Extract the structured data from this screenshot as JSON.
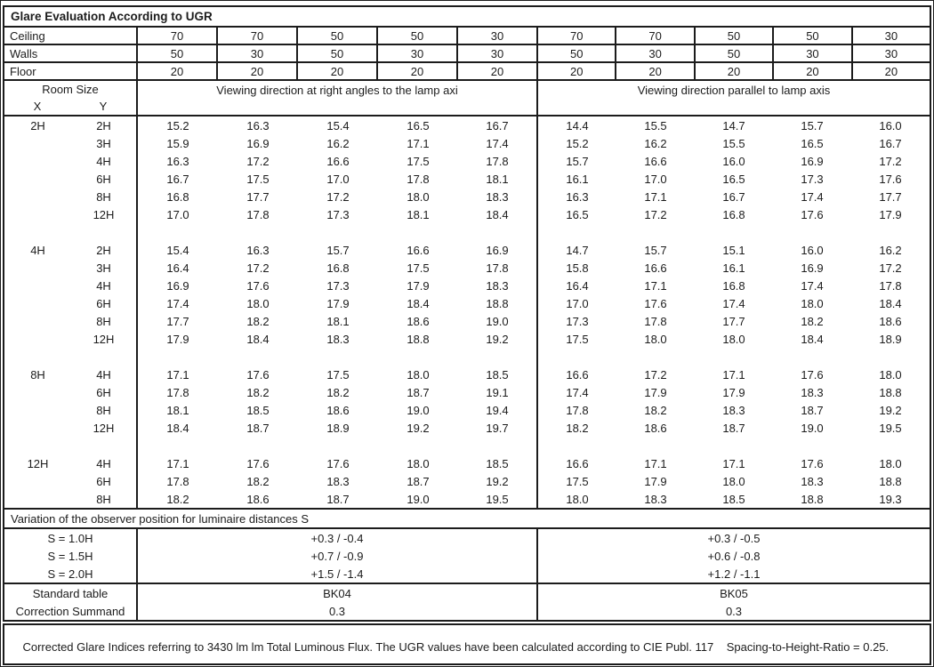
{
  "title": "Glare Evaluation According to UGR",
  "surface_rows": [
    {
      "label": "Ceiling",
      "values": [
        "70",
        "70",
        "50",
        "50",
        "30",
        "70",
        "70",
        "50",
        "50",
        "30"
      ]
    },
    {
      "label": "Walls",
      "values": [
        "50",
        "30",
        "50",
        "30",
        "30",
        "50",
        "30",
        "50",
        "30",
        "30"
      ]
    },
    {
      "label": "Floor",
      "values": [
        "20",
        "20",
        "20",
        "20",
        "20",
        "20",
        "20",
        "20",
        "20",
        "20"
      ]
    }
  ],
  "room_size_header": {
    "title": "Room Size",
    "x_label": "X",
    "y_label": "Y"
  },
  "group_headers": [
    "Viewing direction at right angles to the lamp axi",
    "Viewing direction parallel to lamp axis"
  ],
  "blocks": [
    {
      "x": "2H",
      "rows": [
        {
          "y": "2H",
          "values": [
            "15.2",
            "16.3",
            "15.4",
            "16.5",
            "16.7",
            "14.4",
            "15.5",
            "14.7",
            "15.7",
            "16.0"
          ]
        },
        {
          "y": "3H",
          "values": [
            "15.9",
            "16.9",
            "16.2",
            "17.1",
            "17.4",
            "15.2",
            "16.2",
            "15.5",
            "16.5",
            "16.7"
          ]
        },
        {
          "y": "4H",
          "values": [
            "16.3",
            "17.2",
            "16.6",
            "17.5",
            "17.8",
            "15.7",
            "16.6",
            "16.0",
            "16.9",
            "17.2"
          ]
        },
        {
          "y": "6H",
          "values": [
            "16.7",
            "17.5",
            "17.0",
            "17.8",
            "18.1",
            "16.1",
            "17.0",
            "16.5",
            "17.3",
            "17.6"
          ]
        },
        {
          "y": "8H",
          "values": [
            "16.8",
            "17.7",
            "17.2",
            "18.0",
            "18.3",
            "16.3",
            "17.1",
            "16.7",
            "17.4",
            "17.7"
          ]
        },
        {
          "y": "12H",
          "values": [
            "17.0",
            "17.8",
            "17.3",
            "18.1",
            "18.4",
            "16.5",
            "17.2",
            "16.8",
            "17.6",
            "17.9"
          ]
        }
      ]
    },
    {
      "x": "4H",
      "rows": [
        {
          "y": "2H",
          "values": [
            "15.4",
            "16.3",
            "15.7",
            "16.6",
            "16.9",
            "14.7",
            "15.7",
            "15.1",
            "16.0",
            "16.2"
          ]
        },
        {
          "y": "3H",
          "values": [
            "16.4",
            "17.2",
            "16.8",
            "17.5",
            "17.8",
            "15.8",
            "16.6",
            "16.1",
            "16.9",
            "17.2"
          ]
        },
        {
          "y": "4H",
          "values": [
            "16.9",
            "17.6",
            "17.3",
            "17.9",
            "18.3",
            "16.4",
            "17.1",
            "16.8",
            "17.4",
            "17.8"
          ]
        },
        {
          "y": "6H",
          "values": [
            "17.4",
            "18.0",
            "17.9",
            "18.4",
            "18.8",
            "17.0",
            "17.6",
            "17.4",
            "18.0",
            "18.4"
          ]
        },
        {
          "y": "8H",
          "values": [
            "17.7",
            "18.2",
            "18.1",
            "18.6",
            "19.0",
            "17.3",
            "17.8",
            "17.7",
            "18.2",
            "18.6"
          ]
        },
        {
          "y": "12H",
          "values": [
            "17.9",
            "18.4",
            "18.3",
            "18.8",
            "19.2",
            "17.5",
            "18.0",
            "18.0",
            "18.4",
            "18.9"
          ]
        }
      ]
    },
    {
      "x": "8H",
      "rows": [
        {
          "y": "4H",
          "values": [
            "17.1",
            "17.6",
            "17.5",
            "18.0",
            "18.5",
            "16.6",
            "17.2",
            "17.1",
            "17.6",
            "18.0"
          ]
        },
        {
          "y": "6H",
          "values": [
            "17.8",
            "18.2",
            "18.2",
            "18.7",
            "19.1",
            "17.4",
            "17.9",
            "17.9",
            "18.3",
            "18.8"
          ]
        },
        {
          "y": "8H",
          "values": [
            "18.1",
            "18.5",
            "18.6",
            "19.0",
            "19.4",
            "17.8",
            "18.2",
            "18.3",
            "18.7",
            "19.2"
          ]
        },
        {
          "y": "12H",
          "values": [
            "18.4",
            "18.7",
            "18.9",
            "19.2",
            "19.7",
            "18.2",
            "18.6",
            "18.7",
            "19.0",
            "19.5"
          ]
        }
      ]
    },
    {
      "x": "12H",
      "rows": [
        {
          "y": "4H",
          "values": [
            "17.1",
            "17.6",
            "17.6",
            "18.0",
            "18.5",
            "16.6",
            "17.1",
            "17.1",
            "17.6",
            "18.0"
          ]
        },
        {
          "y": "6H",
          "values": [
            "17.8",
            "18.2",
            "18.3",
            "18.7",
            "19.2",
            "17.5",
            "17.9",
            "18.0",
            "18.3",
            "18.8"
          ]
        },
        {
          "y": "8H",
          "values": [
            "18.2",
            "18.6",
            "18.7",
            "19.0",
            "19.5",
            "18.0",
            "18.3",
            "18.5",
            "18.8",
            "19.3"
          ]
        }
      ]
    }
  ],
  "variation_label": "Variation of the observer position for luminaire distances S",
  "variation_rows": [
    {
      "label": "S = 1.0H",
      "left": "+0.3 / -0.4",
      "right": "+0.3 / -0.5"
    },
    {
      "label": "S = 1.5H",
      "left": "+0.7 / -0.9",
      "right": "+0.6 / -0.8"
    },
    {
      "label": "S = 2.0H",
      "left": "+1.5 / -1.4",
      "right": "+1.2 / -1.1"
    }
  ],
  "summary_rows": [
    {
      "label": "Standard table",
      "left": "BK04",
      "right": "BK05"
    },
    {
      "label": "Correction Summand",
      "left": "0.3",
      "right": "0.3"
    }
  ],
  "footer": "Corrected Glare Indices referring to 3430 lm lm Total Luminous Flux. The UGR values have been calculated according to CIE Publ. 117    Spacing-to-Height-Ratio = 0.25."
}
